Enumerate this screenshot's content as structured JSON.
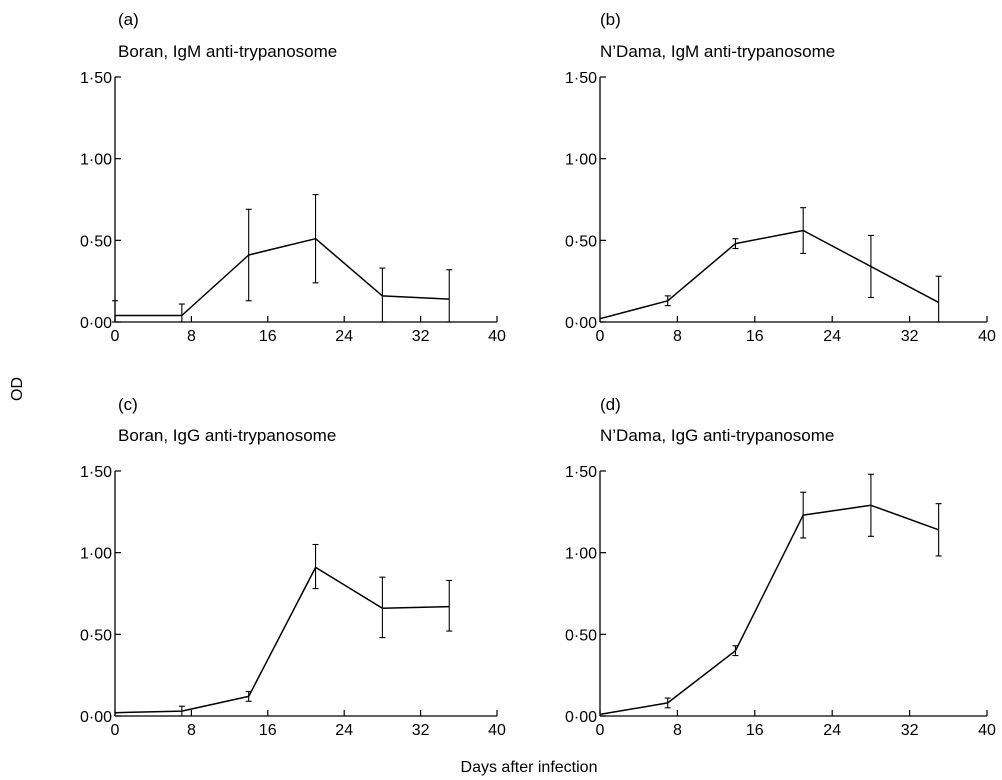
{
  "figure": {
    "ylabel": "OD",
    "xlabel": "Days after infection"
  },
  "chart_data": [
    {
      "type": "line",
      "panel_letter": "(a)",
      "title": "Boran, IgM anti-trypanosome",
      "xlim": [
        0,
        40
      ],
      "ylim": [
        0,
        1.5
      ],
      "x_ticks": [
        0,
        8,
        16,
        24,
        32,
        40
      ],
      "x_tick_labels": [
        "0",
        "8",
        "16",
        "24",
        "32",
        "40"
      ],
      "y_ticks": [
        0,
        0.5,
        1.0,
        1.5
      ],
      "y_tick_labels": [
        "0·00",
        "0·50",
        "1·00",
        "1·50"
      ],
      "series": [
        {
          "x": [
            0,
            7,
            14,
            21,
            28,
            35
          ],
          "y": [
            0.04,
            0.04,
            0.41,
            0.51,
            0.16,
            0.14
          ],
          "err_low": [
            0.0,
            0.0,
            0.13,
            0.24,
            0.0,
            0.0
          ],
          "err_high": [
            0.13,
            0.11,
            0.69,
            0.78,
            0.33,
            0.32
          ]
        }
      ]
    },
    {
      "type": "line",
      "panel_letter": "(b)",
      "title": "N’Dama, IgM anti-trypanosome",
      "xlim": [
        0,
        40
      ],
      "ylim": [
        0,
        1.5
      ],
      "x_ticks": [
        0,
        8,
        16,
        24,
        32,
        40
      ],
      "x_tick_labels": [
        "0",
        "8",
        "16",
        "24",
        "32",
        "40"
      ],
      "y_ticks": [
        0,
        0.5,
        1.0,
        1.5
      ],
      "y_tick_labels": [
        "0·00",
        "0·50",
        "1·00",
        "1·50"
      ],
      "series": [
        {
          "x": [
            0,
            7,
            14,
            21,
            28,
            35
          ],
          "y": [
            0.02,
            0.13,
            0.48,
            0.56,
            0.34,
            0.12
          ],
          "err_low": [
            0.02,
            0.1,
            0.45,
            0.42,
            0.15,
            0.0
          ],
          "err_high": [
            0.02,
            0.16,
            0.51,
            0.7,
            0.53,
            0.28
          ]
        }
      ]
    },
    {
      "type": "line",
      "panel_letter": "(c)",
      "title": "Boran, IgG anti-trypanosome",
      "xlim": [
        0,
        40
      ],
      "ylim": [
        0,
        1.5
      ],
      "x_ticks": [
        0,
        8,
        16,
        24,
        32,
        40
      ],
      "x_tick_labels": [
        "0",
        "8",
        "16",
        "24",
        "32",
        "40"
      ],
      "y_ticks": [
        0,
        0.5,
        1.0,
        1.5
      ],
      "y_tick_labels": [
        "0·00",
        "0·50",
        "1·00",
        "1·50"
      ],
      "series": [
        {
          "x": [
            0,
            7,
            14,
            21,
            28,
            35
          ],
          "y": [
            0.02,
            0.03,
            0.12,
            0.91,
            0.66,
            0.67
          ],
          "err_low": [
            0.02,
            0.0,
            0.09,
            0.78,
            0.48,
            0.52
          ],
          "err_high": [
            0.02,
            0.06,
            0.15,
            1.05,
            0.85,
            0.83
          ]
        }
      ]
    },
    {
      "type": "line",
      "panel_letter": "(d)",
      "title": "N’Dama, IgG anti-trypanosome",
      "xlim": [
        0,
        40
      ],
      "ylim": [
        0,
        1.5
      ],
      "x_ticks": [
        0,
        8,
        16,
        24,
        32,
        40
      ],
      "x_tick_labels": [
        "0",
        "8",
        "16",
        "24",
        "32",
        "40"
      ],
      "y_ticks": [
        0,
        0.5,
        1.0,
        1.5
      ],
      "y_tick_labels": [
        "0·00",
        "0·50",
        "1·00",
        "1·50"
      ],
      "series": [
        {
          "x": [
            0,
            7,
            14,
            21,
            28,
            35
          ],
          "y": [
            0.01,
            0.08,
            0.4,
            1.23,
            1.29,
            1.14
          ],
          "err_low": [
            0.01,
            0.05,
            0.37,
            1.09,
            1.1,
            0.98
          ],
          "err_high": [
            0.01,
            0.11,
            0.43,
            1.37,
            1.48,
            1.3
          ]
        }
      ]
    }
  ]
}
